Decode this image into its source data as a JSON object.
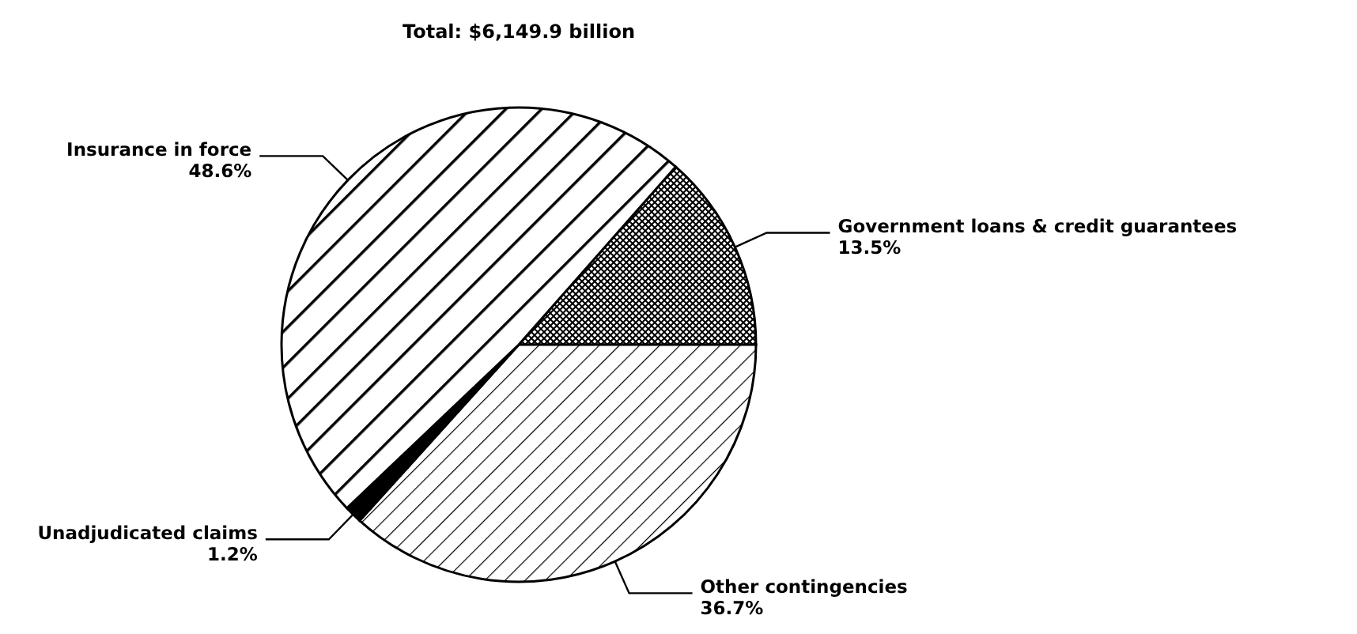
{
  "chart_data": {
    "type": "pie",
    "title": "Total: $6,149.9 billion",
    "categories": [
      "Government loans & credit guarantees",
      "Other contingencies",
      "Unadjudicated claims",
      "Insurance in force"
    ],
    "values": [
      13.5,
      36.7,
      1.2,
      48.6
    ],
    "value_labels": [
      "13.5%",
      "36.7%",
      "1.2%",
      "48.6%"
    ],
    "colors": [
      "#000000",
      "#000000",
      "#000000",
      "#000000"
    ]
  }
}
